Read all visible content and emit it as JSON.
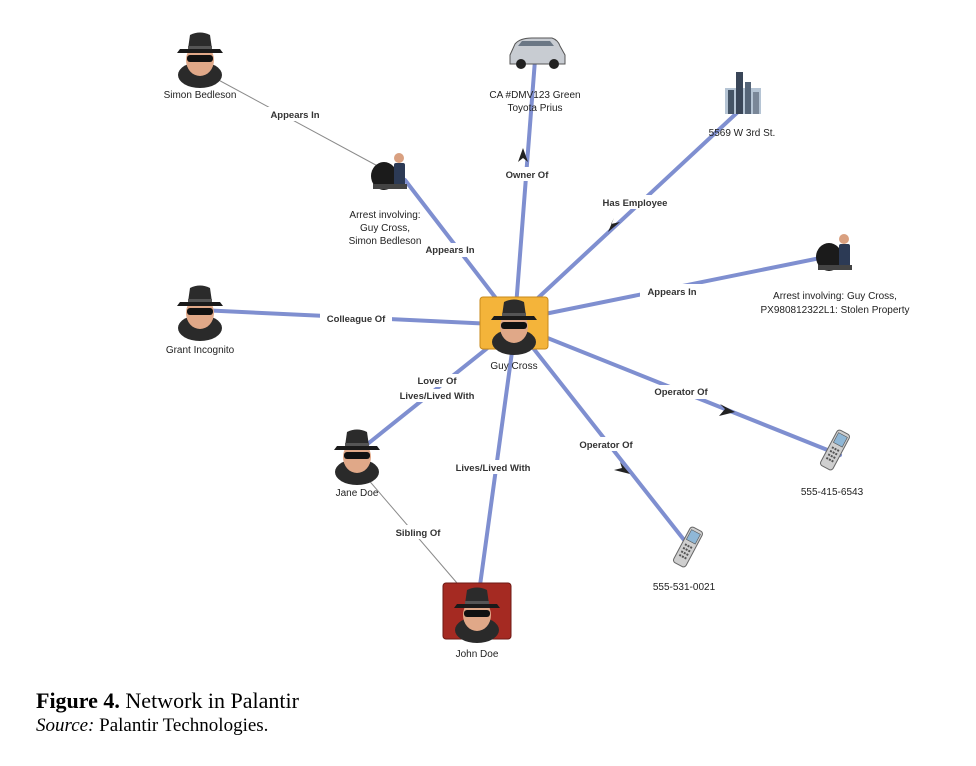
{
  "diagram": {
    "colors": {
      "edge_main": "#7f8fd0",
      "edge_thin": "#8a8a8a",
      "center_bg": "#f4b43a",
      "john_bg": "#a52a22"
    },
    "nodes": {
      "simon": {
        "label": "Simon Bedleson",
        "icon": "spy-icon"
      },
      "car": {
        "label1": "CA #DMV123 Green",
        "label2": "Toyota Prius",
        "icon": "car-icon"
      },
      "address": {
        "label": "5569 W 3rd St.",
        "icon": "building-icon"
      },
      "arrest1": {
        "label1": "Arrest involving:",
        "label2": "Guy Cross,",
        "label3": "Simon Bedleson",
        "icon": "arrest-icon"
      },
      "arrest2": {
        "label1": "Arrest involving: Guy Cross,",
        "label2": "PX980812322L1: Stolen Property",
        "icon": "arrest-icon"
      },
      "grant": {
        "label": "Grant Incognito",
        "icon": "spy-icon"
      },
      "guy": {
        "label": "Guy Cross",
        "icon": "spy-icon"
      },
      "jane": {
        "label": "Jane Doe",
        "icon": "spy-icon"
      },
      "john": {
        "label": "John Doe",
        "icon": "spy-icon"
      },
      "phone1": {
        "label": "555-415-6543",
        "icon": "phone-icon"
      },
      "phone2": {
        "label": "555-531-0021",
        "icon": "phone-icon"
      }
    },
    "edges": {
      "simon_arrest": "Appears In",
      "arrest_guy": "Appears In",
      "car_owner": "Owner Of",
      "has_employee": "Has Employee",
      "arrest2_guy": "Appears In",
      "colleague": "Colleague Of",
      "lover": "Lover Of",
      "lives_with_jane": "Lives/Lived With",
      "lives_with_john": "Lives/Lived With",
      "sibling": "Sibling Of",
      "operator1": "Operator Of",
      "operator2": "Operator Of"
    }
  },
  "caption": {
    "figure": "Figure 4.",
    "title": " Network in Palantir",
    "source_label": "Source:",
    "source": " Palantir Technologies."
  }
}
